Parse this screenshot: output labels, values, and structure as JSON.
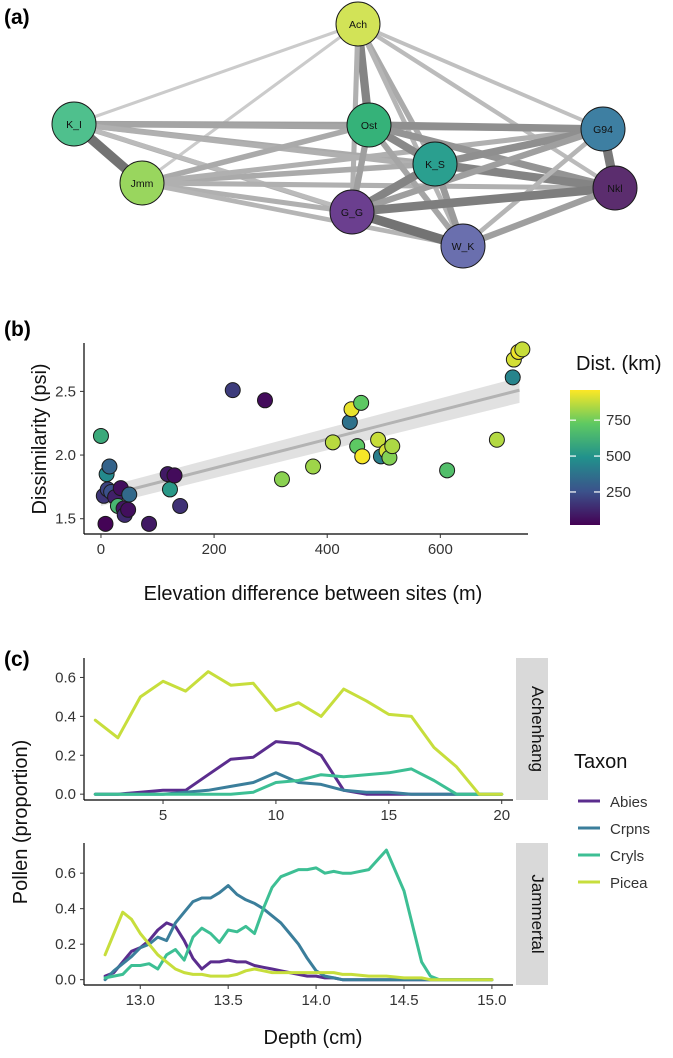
{
  "panel_tags": {
    "a": "(a)",
    "b": "(b)",
    "c": "(c)"
  },
  "colors": {
    "viridis": [
      "#440154",
      "#3b528b",
      "#21918c",
      "#5ec962",
      "#fde725"
    ],
    "edge": "#8c8c8c",
    "band": "#d9d9d9",
    "trend": "#b3b3b3",
    "strip": "#d9d9d9"
  },
  "chart_data": [
    {
      "type": "network",
      "title": "",
      "nodes": [
        {
          "id": "Ach",
          "label": "Ach",
          "color": "#d2e357"
        },
        {
          "id": "K_I",
          "label": "K_I",
          "color": "#4fc08d"
        },
        {
          "id": "Jmm",
          "label": "Jmm",
          "color": "#99d65e"
        },
        {
          "id": "Ost",
          "label": "Ost",
          "color": "#35b279"
        },
        {
          "id": "K_S",
          "label": "K_S",
          "color": "#2a9f8f"
        },
        {
          "id": "G94",
          "label": "G94",
          "color": "#3e7fa2"
        },
        {
          "id": "Nkl",
          "label": "Nkl",
          "color": "#5b2d6e"
        },
        {
          "id": "G_G",
          "label": "G_G",
          "color": "#6b3f8f"
        },
        {
          "id": "W_K",
          "label": "W_K",
          "color": "#6a6fae"
        }
      ],
      "edges": [
        {
          "s": "Ach",
          "t": "Ost",
          "w": 0.85
        },
        {
          "s": "Ach",
          "t": "K_S",
          "w": 0.5
        },
        {
          "s": "Ach",
          "t": "G_G",
          "w": 0.45
        },
        {
          "s": "Ach",
          "t": "W_K",
          "w": 0.4
        },
        {
          "s": "Ach",
          "t": "K_I",
          "w": 0.2
        },
        {
          "s": "Ach",
          "t": "Jmm",
          "w": 0.2
        },
        {
          "s": "Ach",
          "t": "Nkl",
          "w": 0.35
        },
        {
          "s": "Ach",
          "t": "G94",
          "w": 0.3
        },
        {
          "s": "K_I",
          "t": "Jmm",
          "w": 1.0
        },
        {
          "s": "K_I",
          "t": "Ost",
          "w": 0.6
        },
        {
          "s": "K_I",
          "t": "G94",
          "w": 0.55
        },
        {
          "s": "K_I",
          "t": "K_S",
          "w": 0.5
        },
        {
          "s": "K_I",
          "t": "G_G",
          "w": 0.45
        },
        {
          "s": "K_I",
          "t": "Nkl",
          "w": 0.45
        },
        {
          "s": "K_I",
          "t": "W_K",
          "w": 0.35
        },
        {
          "s": "Jmm",
          "t": "Ost",
          "w": 0.5
        },
        {
          "s": "Jmm",
          "t": "K_S",
          "w": 0.5
        },
        {
          "s": "Jmm",
          "t": "G94",
          "w": 0.45
        },
        {
          "s": "Jmm",
          "t": "Nkl",
          "w": 0.45
        },
        {
          "s": "Jmm",
          "t": "G_G",
          "w": 0.45
        },
        {
          "s": "Jmm",
          "t": "W_K",
          "w": 0.4
        },
        {
          "s": "Ost",
          "t": "K_S",
          "w": 0.8
        },
        {
          "s": "Ost",
          "t": "G94",
          "w": 0.75
        },
        {
          "s": "Ost",
          "t": "Nkl",
          "w": 0.7
        },
        {
          "s": "Ost",
          "t": "G_G",
          "w": 0.6
        },
        {
          "s": "Ost",
          "t": "W_K",
          "w": 0.55
        },
        {
          "s": "K_S",
          "t": "G94",
          "w": 0.75
        },
        {
          "s": "K_S",
          "t": "Nkl",
          "w": 0.85
        },
        {
          "s": "K_S",
          "t": "G_G",
          "w": 0.85
        },
        {
          "s": "K_S",
          "t": "W_K",
          "w": 0.65
        },
        {
          "s": "G94",
          "t": "Nkl",
          "w": 0.95
        },
        {
          "s": "G94",
          "t": "G_G",
          "w": 0.6
        },
        {
          "s": "G94",
          "t": "W_K",
          "w": 0.4
        },
        {
          "s": "Nkl",
          "t": "G_G",
          "w": 0.9
        },
        {
          "s": "Nkl",
          "t": "W_K",
          "w": 0.6
        },
        {
          "s": "G_G",
          "t": "W_K",
          "w": 1.0
        }
      ]
    },
    {
      "type": "scatter",
      "xlabel": "Elevation difference between sites (m)",
      "ylabel": "Dissimilarity (psi)",
      "xlim": [
        -30,
        755
      ],
      "ylim": [
        1.38,
        2.88
      ],
      "xticks": [
        0,
        200,
        400,
        600
      ],
      "yticks": [
        1.5,
        2.0,
        2.5
      ],
      "ytick_labels": [
        "1.5",
        "2.0",
        "2.5"
      ],
      "trend": {
        "x0": 0,
        "y0": 1.67,
        "x1": 740,
        "y1": 2.51,
        "se0": 0.07,
        "se1": 0.1
      },
      "legend": {
        "title": "Dist. (km)",
        "ticks": [
          250,
          500,
          750
        ],
        "range": [
          20,
          960
        ],
        "placement": "right"
      },
      "points": [
        {
          "x": 0,
          "y": 2.15,
          "d": 590
        },
        {
          "x": 5,
          "y": 1.68,
          "d": 170
        },
        {
          "x": 8,
          "y": 1.46,
          "d": 30
        },
        {
          "x": 10,
          "y": 1.85,
          "d": 460
        },
        {
          "x": 12,
          "y": 1.73,
          "d": 210
        },
        {
          "x": 15,
          "y": 1.91,
          "d": 320
        },
        {
          "x": 18,
          "y": 1.71,
          "d": 250
        },
        {
          "x": 25,
          "y": 1.67,
          "d": 110
        },
        {
          "x": 30,
          "y": 1.6,
          "d": 640
        },
        {
          "x": 35,
          "y": 1.74,
          "d": 60
        },
        {
          "x": 40,
          "y": 1.58,
          "d": 80
        },
        {
          "x": 42,
          "y": 1.53,
          "d": 140
        },
        {
          "x": 48,
          "y": 1.57,
          "d": 60
        },
        {
          "x": 50,
          "y": 1.69,
          "d": 340
        },
        {
          "x": 85,
          "y": 1.46,
          "d": 90
        },
        {
          "x": 118,
          "y": 1.85,
          "d": 90
        },
        {
          "x": 122,
          "y": 1.73,
          "d": 520
        },
        {
          "x": 130,
          "y": 1.84,
          "d": 50
        },
        {
          "x": 140,
          "y": 1.6,
          "d": 160
        },
        {
          "x": 233,
          "y": 2.51,
          "d": 190
        },
        {
          "x": 290,
          "y": 2.43,
          "d": 50
        },
        {
          "x": 320,
          "y": 1.81,
          "d": 790
        },
        {
          "x": 375,
          "y": 1.91,
          "d": 820
        },
        {
          "x": 410,
          "y": 2.1,
          "d": 860
        },
        {
          "x": 440,
          "y": 2.26,
          "d": 370
        },
        {
          "x": 443,
          "y": 2.36,
          "d": 930
        },
        {
          "x": 453,
          "y": 2.07,
          "d": 720
        },
        {
          "x": 460,
          "y": 2.41,
          "d": 720
        },
        {
          "x": 462,
          "y": 1.99,
          "d": 950
        },
        {
          "x": 490,
          "y": 2.12,
          "d": 880
        },
        {
          "x": 495,
          "y": 1.99,
          "d": 420
        },
        {
          "x": 505,
          "y": 2.03,
          "d": 900
        },
        {
          "x": 510,
          "y": 1.98,
          "d": 780
        },
        {
          "x": 515,
          "y": 2.07,
          "d": 840
        },
        {
          "x": 612,
          "y": 1.88,
          "d": 680
        },
        {
          "x": 700,
          "y": 2.12,
          "d": 850
        },
        {
          "x": 728,
          "y": 2.61,
          "d": 440
        },
        {
          "x": 730,
          "y": 2.75,
          "d": 900
        },
        {
          "x": 738,
          "y": 2.81,
          "d": 940
        },
        {
          "x": 745,
          "y": 2.83,
          "d": 880
        }
      ]
    },
    {
      "type": "line",
      "ylabel": "Pollen (proportion)",
      "legend": {
        "title": "Taxon",
        "placement": "right"
      },
      "series_meta": [
        {
          "name": "Abies",
          "color": "#5b2d8e"
        },
        {
          "name": "Crpns",
          "color": "#3b7e9b"
        },
        {
          "name": "Cryls",
          "color": "#3dbf94"
        },
        {
          "name": "Picea",
          "color": "#c7de3c"
        }
      ],
      "facets": [
        {
          "label": "Achenhang",
          "xlim": [
            1.5,
            20.5
          ],
          "ylim": [
            -0.03,
            0.7
          ],
          "xticks": [
            5,
            10,
            15,
            20
          ],
          "yticks": [
            0.0,
            0.2,
            0.4,
            0.6
          ],
          "ytick_labels": [
            "0.0",
            "0.2",
            "0.4",
            "0.6"
          ],
          "x": [
            2,
            3,
            4,
            5,
            6,
            7,
            8,
            9,
            10,
            11,
            12,
            13,
            14,
            15,
            16,
            17,
            18,
            19,
            20
          ],
          "series": [
            {
              "name": "Abies",
              "values": [
                0.0,
                0.0,
                0.01,
                0.02,
                0.02,
                0.1,
                0.18,
                0.19,
                0.27,
                0.26,
                0.2,
                0.02,
                0.0,
                0.0,
                0.0,
                0.0,
                0.0,
                0.0,
                0.0
              ]
            },
            {
              "name": "Crpns",
              "values": [
                0.0,
                0.0,
                0.0,
                0.0,
                0.01,
                0.02,
                0.04,
                0.06,
                0.11,
                0.06,
                0.05,
                0.02,
                0.01,
                0.01,
                0.0,
                0.0,
                0.0,
                0.0,
                0.0
              ]
            },
            {
              "name": "Cryls",
              "values": [
                0.0,
                0.0,
                0.0,
                0.0,
                0.0,
                0.0,
                0.0,
                0.01,
                0.06,
                0.07,
                0.1,
                0.09,
                0.1,
                0.11,
                0.13,
                0.07,
                0.0,
                0.0,
                0.0
              ]
            },
            {
              "name": "Picea",
              "values": [
                0.38,
                0.29,
                0.5,
                0.58,
                0.53,
                0.63,
                0.56,
                0.57,
                0.43,
                0.47,
                0.4,
                0.54,
                0.48,
                0.41,
                0.4,
                0.24,
                0.14,
                0.0,
                0.0
              ]
            }
          ]
        },
        {
          "label": "Jammertal",
          "xlim": [
            12.68,
            15.12
          ],
          "ylim": [
            -0.03,
            0.77
          ],
          "xticks": [
            13.0,
            13.5,
            14.0,
            14.5,
            15.0
          ],
          "xtick_labels": [
            "13.0",
            "13.5",
            "14.0",
            "14.5",
            "15.0"
          ],
          "yticks": [
            0.0,
            0.2,
            0.4,
            0.6
          ],
          "ytick_labels": [
            "0.0",
            "0.2",
            "0.4",
            "0.6"
          ],
          "x": [
            12.8,
            12.85,
            12.9,
            12.95,
            13.0,
            13.05,
            13.1,
            13.15,
            13.2,
            13.25,
            13.3,
            13.35,
            13.4,
            13.45,
            13.5,
            13.55,
            13.6,
            13.65,
            13.7,
            13.75,
            13.8,
            13.85,
            13.9,
            13.95,
            14.0,
            14.05,
            14.1,
            14.15,
            14.2,
            14.3,
            14.4,
            14.5,
            14.6,
            14.65,
            14.7,
            14.75,
            14.8,
            15.0
          ],
          "series": [
            {
              "name": "Abies",
              "values": [
                0.02,
                0.04,
                0.1,
                0.16,
                0.18,
                0.22,
                0.28,
                0.32,
                0.3,
                0.22,
                0.12,
                0.06,
                0.1,
                0.1,
                0.11,
                0.1,
                0.1,
                0.08,
                0.07,
                0.06,
                0.05,
                0.04,
                0.03,
                0.02,
                0.02,
                0.01,
                0.01,
                0.0,
                0.0,
                0.0,
                0.0,
                0.0,
                0.0,
                0.0,
                0.0,
                0.0,
                0.0,
                0.0
              ]
            },
            {
              "name": "Crpns",
              "values": [
                0.0,
                0.05,
                0.09,
                0.13,
                0.18,
                0.2,
                0.24,
                0.22,
                0.32,
                0.38,
                0.44,
                0.46,
                0.46,
                0.49,
                0.53,
                0.48,
                0.45,
                0.43,
                0.4,
                0.36,
                0.32,
                0.26,
                0.2,
                0.12,
                0.05,
                0.02,
                0.01,
                0.0,
                0.0,
                0.0,
                0.0,
                0.0,
                0.0,
                0.0,
                0.0,
                0.0,
                0.0,
                0.0
              ]
            },
            {
              "name": "Cryls",
              "values": [
                0.01,
                0.02,
                0.03,
                0.08,
                0.08,
                0.09,
                0.06,
                0.14,
                0.17,
                0.11,
                0.24,
                0.29,
                0.26,
                0.21,
                0.28,
                0.27,
                0.3,
                0.26,
                0.4,
                0.52,
                0.58,
                0.6,
                0.62,
                0.62,
                0.63,
                0.6,
                0.61,
                0.6,
                0.6,
                0.62,
                0.73,
                0.5,
                0.1,
                0.02,
                0.0,
                0.0,
                0.0,
                0.0
              ]
            },
            {
              "name": "Picea",
              "values": [
                0.14,
                0.26,
                0.38,
                0.34,
                0.26,
                0.2,
                0.14,
                0.1,
                0.06,
                0.04,
                0.03,
                0.03,
                0.02,
                0.02,
                0.02,
                0.03,
                0.05,
                0.06,
                0.05,
                0.04,
                0.04,
                0.04,
                0.04,
                0.04,
                0.04,
                0.04,
                0.04,
                0.03,
                0.03,
                0.02,
                0.02,
                0.01,
                0.01,
                0.0,
                0.0,
                0.0,
                0.0,
                0.0
              ]
            }
          ]
        }
      ],
      "xlabel": "Depth (cm)"
    }
  ]
}
